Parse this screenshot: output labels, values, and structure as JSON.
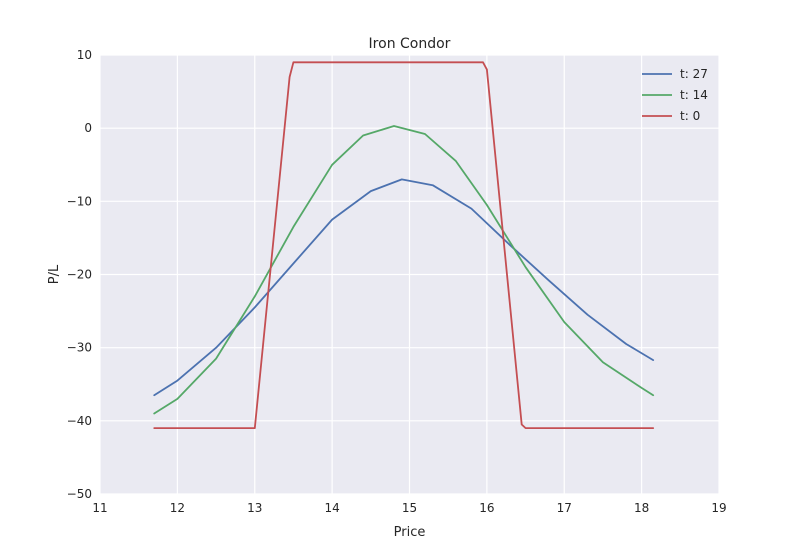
{
  "chart_data": {
    "type": "line",
    "title": "Iron Condor",
    "xlabel": "Price",
    "ylabel": "P/L",
    "xlim": [
      11,
      19
    ],
    "ylim": [
      -50,
      10
    ],
    "xticks": [
      "11",
      "12",
      "13",
      "14",
      "15",
      "16",
      "17",
      "18",
      "19"
    ],
    "yticks": [
      "10",
      "0",
      "−10",
      "−20",
      "−30",
      "−40",
      "−50"
    ],
    "grid": true,
    "legend_position": "top-right",
    "background": "#eaeaf2",
    "series": [
      {
        "name": "t: 27",
        "color": "#4c72b0",
        "x": [
          11.7,
          12.0,
          12.5,
          13.0,
          13.5,
          14.0,
          14.5,
          14.9,
          15.3,
          15.8,
          16.3,
          16.8,
          17.3,
          17.8,
          18.15
        ],
        "y": [
          -36.5,
          -34.5,
          -30.0,
          -24.5,
          -18.5,
          -12.5,
          -8.6,
          -7.0,
          -7.8,
          -11.0,
          -16.0,
          -20.8,
          -25.5,
          -29.5,
          -31.7
        ]
      },
      {
        "name": "t: 14",
        "color": "#55a868",
        "x": [
          11.7,
          12.0,
          12.5,
          13.0,
          13.5,
          14.0,
          14.4,
          14.8,
          15.2,
          15.6,
          16.0,
          16.5,
          17.0,
          17.5,
          18.0,
          18.15
        ],
        "y": [
          -39.0,
          -37.0,
          -31.5,
          -23.0,
          -13.5,
          -5.0,
          -1.0,
          0.3,
          -0.8,
          -4.5,
          -10.5,
          -19.0,
          -26.5,
          -32.0,
          -35.5,
          -36.5
        ]
      },
      {
        "name": "t: 0",
        "color": "#c44e52",
        "x": [
          11.7,
          13.0,
          13.45,
          13.5,
          15.95,
          16.0,
          16.45,
          16.5,
          18.15
        ],
        "y": [
          -41.0,
          -41.0,
          7.0,
          9.0,
          9.0,
          8.0,
          -40.5,
          -41.0,
          -41.0
        ]
      }
    ]
  }
}
